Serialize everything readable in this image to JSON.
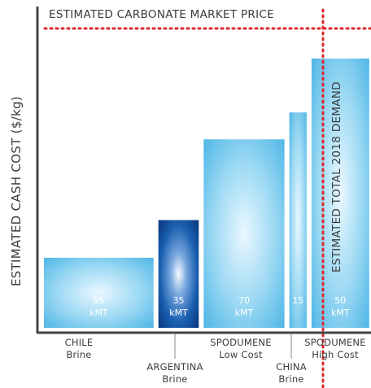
{
  "chart_data": {
    "type": "bar",
    "variant": "supply-cost-curve",
    "price_line_label": "ESTIMATED CARBONATE MARKET PRICE",
    "demand_line_label": "ESTIMATED TOTAL 2018 DEMAND",
    "ylabel": "ESTIMATED CASH COST ($/kg)",
    "xlabel": "",
    "bars": [
      {
        "tick1": "CHILE",
        "tick2": "Brine",
        "value_label": "95",
        "unit_label": "kMT",
        "capacity_kmt": 95,
        "cost_rel": 0.26
      },
      {
        "tick1": "ARGENTINA",
        "tick2": "Brine",
        "value_label": "35",
        "unit_label": "kMT",
        "capacity_kmt": 35,
        "cost_rel": 0.4
      },
      {
        "tick1": "SPODUMENE",
        "tick2": "Low Cost",
        "value_label": "70",
        "unit_label": "kMT",
        "capacity_kmt": 70,
        "cost_rel": 0.7
      },
      {
        "tick1": "CHINA",
        "tick2": "Brine",
        "value_label": "15",
        "unit_label": "",
        "capacity_kmt": 15,
        "cost_rel": 0.8
      },
      {
        "tick1": "SPODUMENE",
        "tick2": "High Cost",
        "value_label": "50",
        "unit_label": "kMT",
        "capacity_kmt": 50,
        "cost_rel": 1.0
      }
    ],
    "price_level_rel": 1.1,
    "demand_cumulative_kmt": 230,
    "colors": {
      "bar_light": "#bfe6f8",
      "bar_mid": "#5bbce8",
      "bar_dark": "#0d5fa6",
      "bar_dark_core": "#f4f9ff",
      "dotted_line": "#e0262a",
      "axis": "#444444"
    }
  }
}
